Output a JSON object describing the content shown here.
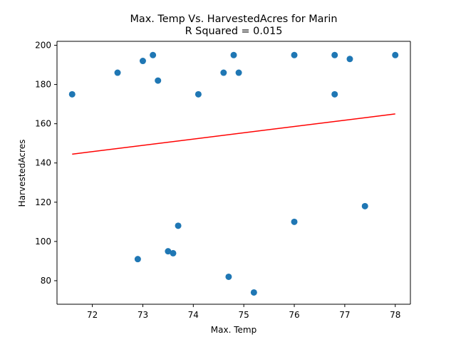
{
  "chart_data": {
    "type": "scatter",
    "title": "Max. Temp Vs. HarvestedAcres for Marin",
    "subtitle": "R Squared =  0.015",
    "xlabel": "Max. Temp",
    "ylabel": "HarvestedAcres",
    "xlim": [
      71.3,
      78.3
    ],
    "ylim": [
      68,
      202
    ],
    "xticks": [
      72,
      73,
      74,
      75,
      76,
      77,
      78
    ],
    "yticks": [
      80,
      100,
      120,
      140,
      160,
      180,
      200
    ],
    "grid": false,
    "point_color": "#1f77b4",
    "line_color": "#ff0000",
    "points": [
      {
        "x": 71.6,
        "y": 175
      },
      {
        "x": 72.5,
        "y": 186
      },
      {
        "x": 72.9,
        "y": 91
      },
      {
        "x": 73.0,
        "y": 192
      },
      {
        "x": 73.2,
        "y": 195
      },
      {
        "x": 73.3,
        "y": 182
      },
      {
        "x": 73.5,
        "y": 95
      },
      {
        "x": 73.6,
        "y": 94
      },
      {
        "x": 73.7,
        "y": 108
      },
      {
        "x": 74.1,
        "y": 175
      },
      {
        "x": 74.6,
        "y": 186
      },
      {
        "x": 74.7,
        "y": 82
      },
      {
        "x": 74.8,
        "y": 195
      },
      {
        "x": 74.9,
        "y": 186
      },
      {
        "x": 75.2,
        "y": 74
      },
      {
        "x": 76.0,
        "y": 195
      },
      {
        "x": 76.0,
        "y": 110
      },
      {
        "x": 76.8,
        "y": 195
      },
      {
        "x": 76.8,
        "y": 175
      },
      {
        "x": 77.1,
        "y": 193
      },
      {
        "x": 77.4,
        "y": 118
      },
      {
        "x": 78.0,
        "y": 195
      }
    ],
    "regression_line": {
      "x": [
        71.6,
        78.0
      ],
      "y": [
        144.5,
        165.0
      ]
    }
  }
}
